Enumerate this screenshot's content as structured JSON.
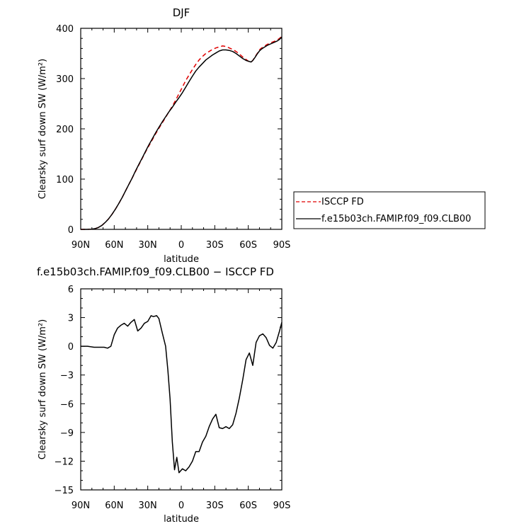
{
  "chart_data": [
    {
      "type": "line",
      "title": "DJF",
      "xlabel": "latitude",
      "ylabel": "Clearsky surf down SW (W/m²)",
      "xlim": [
        -90,
        90
      ],
      "ylim": [
        0,
        400
      ],
      "x_ticks": [
        -90,
        -60,
        -30,
        0,
        30,
        60,
        90
      ],
      "x_tick_labels": [
        "90N",
        "60N",
        "30N",
        "0",
        "30S",
        "60S",
        "90S"
      ],
      "y_ticks": [
        0,
        100,
        200,
        300,
        400
      ],
      "y_tick_labels": [
        "0",
        "100",
        "200",
        "300",
        "400"
      ],
      "legend_position": "right",
      "x": [
        -90,
        -85,
        -80,
        -77,
        -74,
        -71,
        -68,
        -65,
        -62,
        -59,
        -56,
        -53,
        -50,
        -47,
        -44,
        -41,
        -38,
        -35,
        -32,
        -29,
        -26,
        -23,
        -20,
        -17,
        -14,
        -11,
        -8,
        -5,
        -2,
        1,
        4,
        7,
        10,
        13,
        16,
        19,
        22,
        25,
        28,
        31,
        34,
        37,
        40,
        43,
        46,
        49,
        52,
        55,
        58,
        61,
        62.5,
        64,
        66,
        68,
        70,
        72,
        74,
        77,
        80,
        83,
        86,
        88,
        90
      ],
      "series": [
        {
          "name": "ISCCP FD",
          "color": "#e00000",
          "style": "dashed",
          "values": [
            0,
            0,
            0.5,
            1.5,
            4,
            8,
            14,
            21,
            30,
            40,
            51,
            63,
            76,
            89,
            102,
            115,
            128,
            141,
            154,
            166,
            178,
            190,
            201,
            212,
            223,
            234,
            245,
            257,
            270,
            283,
            296,
            307,
            318,
            328,
            337,
            344,
            350,
            354,
            358,
            361,
            363,
            365,
            364,
            361,
            358,
            354,
            349,
            343,
            338,
            333,
            333,
            336,
            343,
            350,
            357,
            361,
            364,
            368,
            371,
            374,
            377,
            380,
            384
          ]
        },
        {
          "name": "f.e15b03ch.FAMIP.f09_f09.CLB00",
          "color": "#000000",
          "style": "solid",
          "values": [
            0,
            0,
            0.5,
            1.5,
            4,
            8,
            14,
            21,
            30,
            40,
            51,
            63,
            76,
            89,
            102,
            116,
            129,
            142,
            155,
            168,
            180,
            192,
            203,
            214,
            224,
            234,
            243,
            253,
            262,
            272,
            283,
            294,
            305,
            315,
            323,
            330,
            337,
            342,
            347,
            351,
            355,
            357,
            357,
            356,
            354,
            350,
            345,
            340,
            336,
            334,
            333,
            336,
            342,
            349,
            355,
            359,
            362,
            366,
            369,
            372,
            375,
            378,
            383
          ]
        }
      ]
    },
    {
      "type": "line",
      "title": "f.e15b03ch.FAMIP.f09_f09.CLB00 − ISCCP FD",
      "xlabel": "latitude",
      "ylabel": "Clearsky surf down SW (W/m²)",
      "xlim": [
        -90,
        90
      ],
      "ylim": [
        -15,
        6
      ],
      "x_ticks": [
        -90,
        -60,
        -30,
        0,
        30,
        60,
        90
      ],
      "x_tick_labels": [
        "90N",
        "60N",
        "30N",
        "0",
        "30S",
        "60S",
        "90S"
      ],
      "y_ticks": [
        -15,
        -12,
        -9,
        -6,
        -3,
        0,
        3,
        6
      ],
      "y_tick_labels": [
        "−15",
        "−12",
        "−9",
        "−6",
        "−3",
        "0",
        "3",
        "6"
      ],
      "x": [
        -90,
        -84,
        -78,
        -72,
        -69,
        -66,
        -63,
        -60,
        -57,
        -54,
        -51,
        -48,
        -45,
        -42,
        -39,
        -36,
        -33,
        -30,
        -27,
        -25,
        -22,
        -20,
        -17,
        -14,
        -12,
        -10,
        -8,
        -6,
        -4,
        -2,
        1,
        4,
        7,
        10,
        13,
        16,
        19,
        22,
        25,
        28,
        31,
        34,
        37,
        40,
        43,
        46,
        49,
        52,
        55,
        58,
        61,
        64,
        67,
        70,
        73,
        76,
        79,
        82,
        85,
        88,
        90
      ],
      "series": [
        {
          "name": "",
          "color": "#000000",
          "style": "solid",
          "values": [
            0,
            0,
            -0.1,
            -0.1,
            -0.1,
            -0.2,
            0,
            1.2,
            1.9,
            2.2,
            2.4,
            2.1,
            2.5,
            2.8,
            1.6,
            1.9,
            2.4,
            2.6,
            3.2,
            3.1,
            3.2,
            2.9,
            1.4,
            0,
            -2.5,
            -5.5,
            -10,
            -12.9,
            -11.6,
            -13.2,
            -12.8,
            -13,
            -12.6,
            -12,
            -11,
            -11,
            -10,
            -9.4,
            -8.4,
            -7.6,
            -7.1,
            -8.5,
            -8.6,
            -8.4,
            -8.6,
            -8.2,
            -7,
            -5.4,
            -3.5,
            -1.4,
            -0.7,
            -2,
            0.4,
            1.1,
            1.3,
            0.9,
            0.1,
            -0.2,
            0.4,
            1.6,
            2.5
          ]
        }
      ]
    }
  ]
}
